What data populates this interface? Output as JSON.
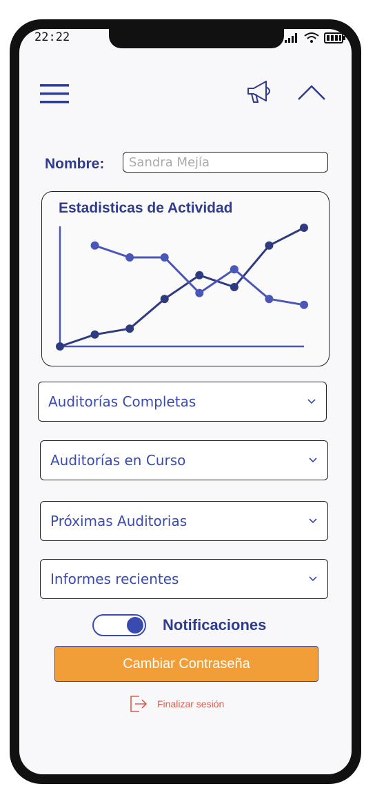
{
  "status_bar": {
    "time": "22:22"
  },
  "header": {
    "menu_icon": "hamburger-icon",
    "announce_icon": "megaphone-icon",
    "collapse_icon": "chevron-up-icon"
  },
  "profile": {
    "name_label": "Nombre:",
    "name_placeholder": "Sandra Mejía"
  },
  "chart_data": {
    "type": "line",
    "title": "Estadisticas de Actividad",
    "xlabel": "",
    "ylabel": "",
    "grid": false,
    "x": [
      0,
      1,
      2,
      3,
      4,
      5,
      6,
      7
    ],
    "ylim": [
      0,
      10
    ],
    "series": [
      {
        "values": [
          0,
          1,
          1.5,
          4,
          6,
          5,
          8.5,
          10
        ],
        "color": "#2f3b80"
      },
      {
        "values": [
          null,
          8.5,
          7.5,
          7.5,
          4.5,
          6.5,
          4,
          3.5
        ],
        "color": "#4a56b8"
      }
    ]
  },
  "sections": [
    {
      "label": "Auditorías Completas"
    },
    {
      "label": "Auditorías en Curso"
    },
    {
      "label": "Próximas Auditorias"
    },
    {
      "label": "Informes recientes"
    }
  ],
  "notifications": {
    "label": "Notificaciones",
    "enabled": true
  },
  "actions": {
    "change_password": "Cambiar Contraseña",
    "logout": "Finalizar sesión"
  },
  "colors": {
    "primary": "#2f3b8c",
    "accent": "#f29e38",
    "logout": "#e05a4a"
  }
}
